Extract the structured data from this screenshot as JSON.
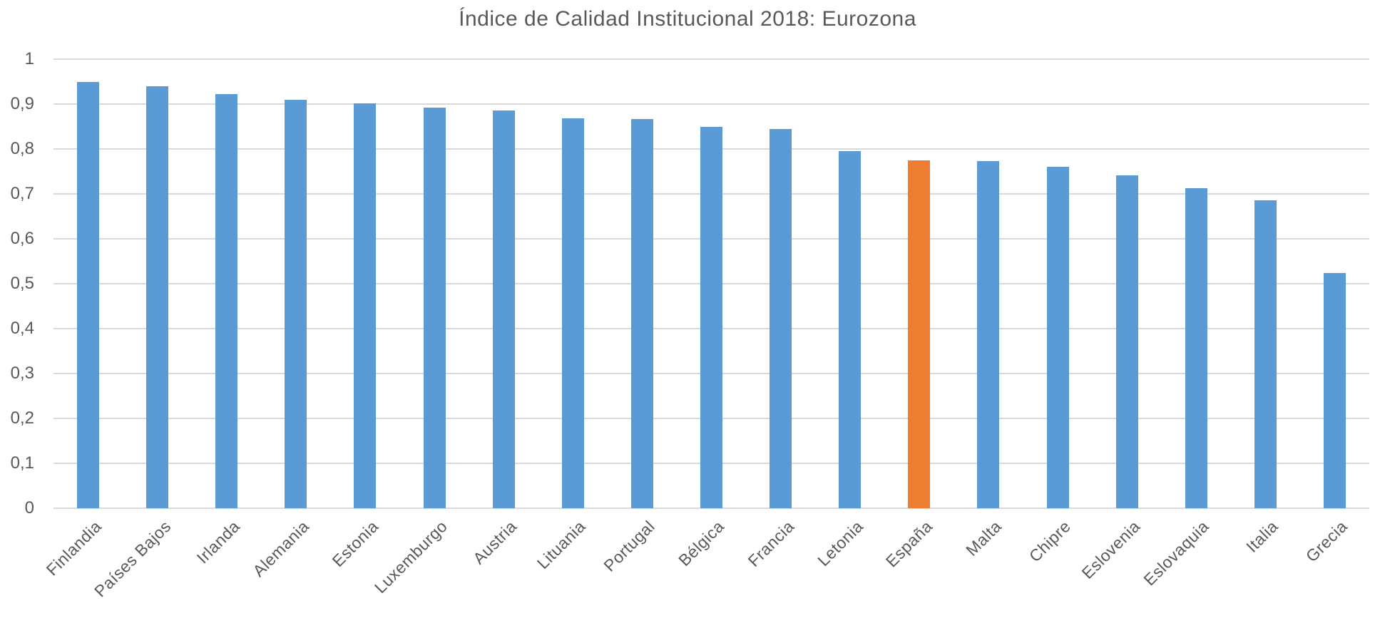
{
  "page": {
    "background_color": "#FFFFFF"
  },
  "chart_data": {
    "type": "bar",
    "title": "Índice de Calidad Institucional 2018: Eurozona",
    "xlabel": "",
    "ylabel": "",
    "legend": "none",
    "grid": "horizontal",
    "ylim": [
      0,
      1
    ],
    "categories": [
      "Finlandia",
      "Países Bajos",
      "Irlanda",
      "Alemania",
      "Estonia",
      "Luxemburgo",
      "Austria",
      "Lituania",
      "Portugal",
      "Bélgica",
      "Francia",
      "Letonia",
      "España",
      "Malta",
      "Chipre",
      "Eslovenia",
      "Eslovaquia",
      "Italia",
      "Grecia"
    ],
    "values": [
      0.949,
      0.939,
      0.922,
      0.91,
      0.902,
      0.892,
      0.885,
      0.869,
      0.866,
      0.849,
      0.844,
      0.796,
      0.774,
      0.773,
      0.761,
      0.742,
      0.713,
      0.685,
      0.524
    ],
    "highlight_category": "España",
    "highlight_index": 12,
    "y_ticks": [
      {
        "value": 1.0,
        "label": "1"
      },
      {
        "value": 0.9,
        "label": "0,9"
      },
      {
        "value": 0.8,
        "label": "0,8"
      },
      {
        "value": 0.7,
        "label": "0,7"
      },
      {
        "value": 0.6,
        "label": "0,6"
      },
      {
        "value": 0.5,
        "label": "0,5"
      },
      {
        "value": 0.4,
        "label": "0,4"
      },
      {
        "value": 0.3,
        "label": "0,3"
      },
      {
        "value": 0.2,
        "label": "0,2"
      },
      {
        "value": 0.1,
        "label": "0,1"
      },
      {
        "value": 0.0,
        "label": "0"
      }
    ],
    "colors": {
      "bar": "#5B9BD5",
      "highlight": "#ED7D31",
      "gridline": "#D9D9D9",
      "text": "#595959"
    }
  }
}
